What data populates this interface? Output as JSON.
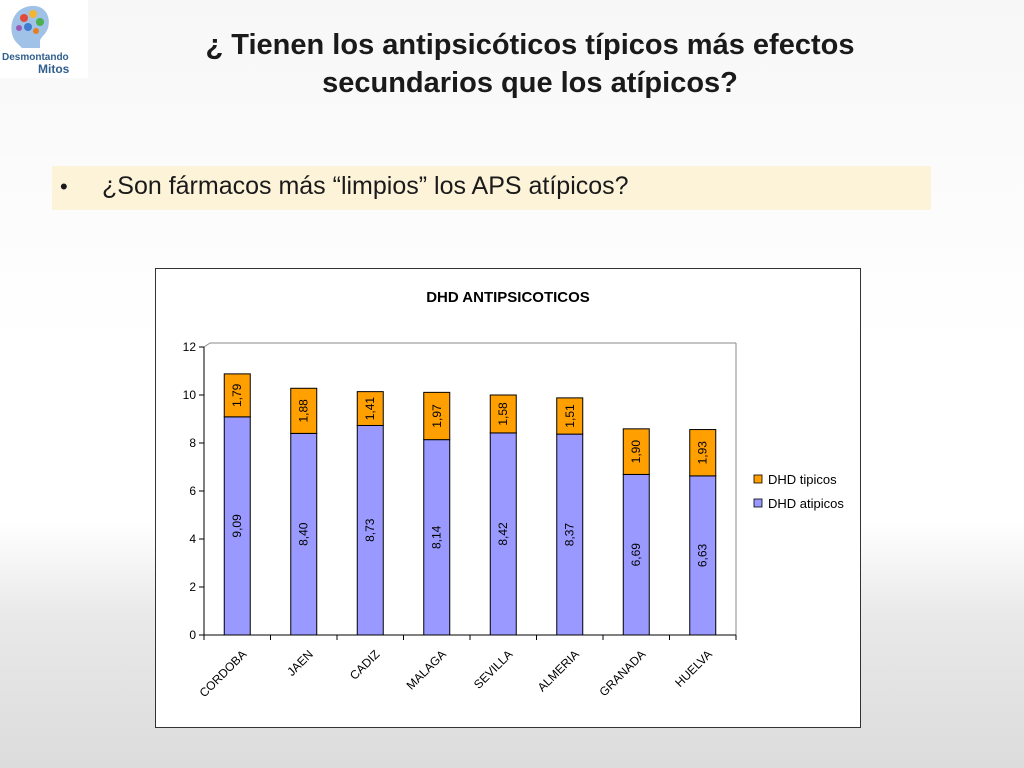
{
  "logo": {
    "line1": "Desmontando",
    "line2": "Mitos"
  },
  "slide": {
    "title": "¿ Tienen los antipsicóticos típicos más efectos secundarios que los atípicos?",
    "bullet": "•",
    "bullet_text": "¿Son fármacos más “limpios” los APS atípicos?"
  },
  "colors": {
    "tipicos": "#ffa000",
    "atipicos": "#9999ff",
    "bullet_bg": "#fcf3d9"
  },
  "chart_data": {
    "type": "bar",
    "stacked": true,
    "title": "DHD ANTIPSICOTICOS",
    "categories": [
      "CORDOBA",
      "JAEN",
      "CADIZ",
      "MALAGA",
      "SEVILLA",
      "ALMERIA",
      "GRANADA",
      "HUELVA"
    ],
    "series": [
      {
        "name": "DHD atipicos",
        "values": [
          9.09,
          8.4,
          8.73,
          8.14,
          8.42,
          8.37,
          6.69,
          6.63
        ],
        "labels": [
          "9,09",
          "8,40",
          "8,73",
          "8,14",
          "8,42",
          "8,37",
          "6,69",
          "6,63"
        ],
        "color": "#9999ff"
      },
      {
        "name": "DHD tipicos",
        "values": [
          1.79,
          1.88,
          1.41,
          1.97,
          1.58,
          1.51,
          1.9,
          1.93
        ],
        "labels": [
          "1,79",
          "1,88",
          "1,41",
          "1,97",
          "1,58",
          "1,51",
          "1,90",
          "1,93"
        ],
        "color": "#ffa000"
      }
    ],
    "ylim": [
      0,
      12
    ],
    "yticks": [
      "0",
      "2",
      "4",
      "6",
      "8",
      "10",
      "12"
    ],
    "grid": false,
    "legend": "right"
  }
}
